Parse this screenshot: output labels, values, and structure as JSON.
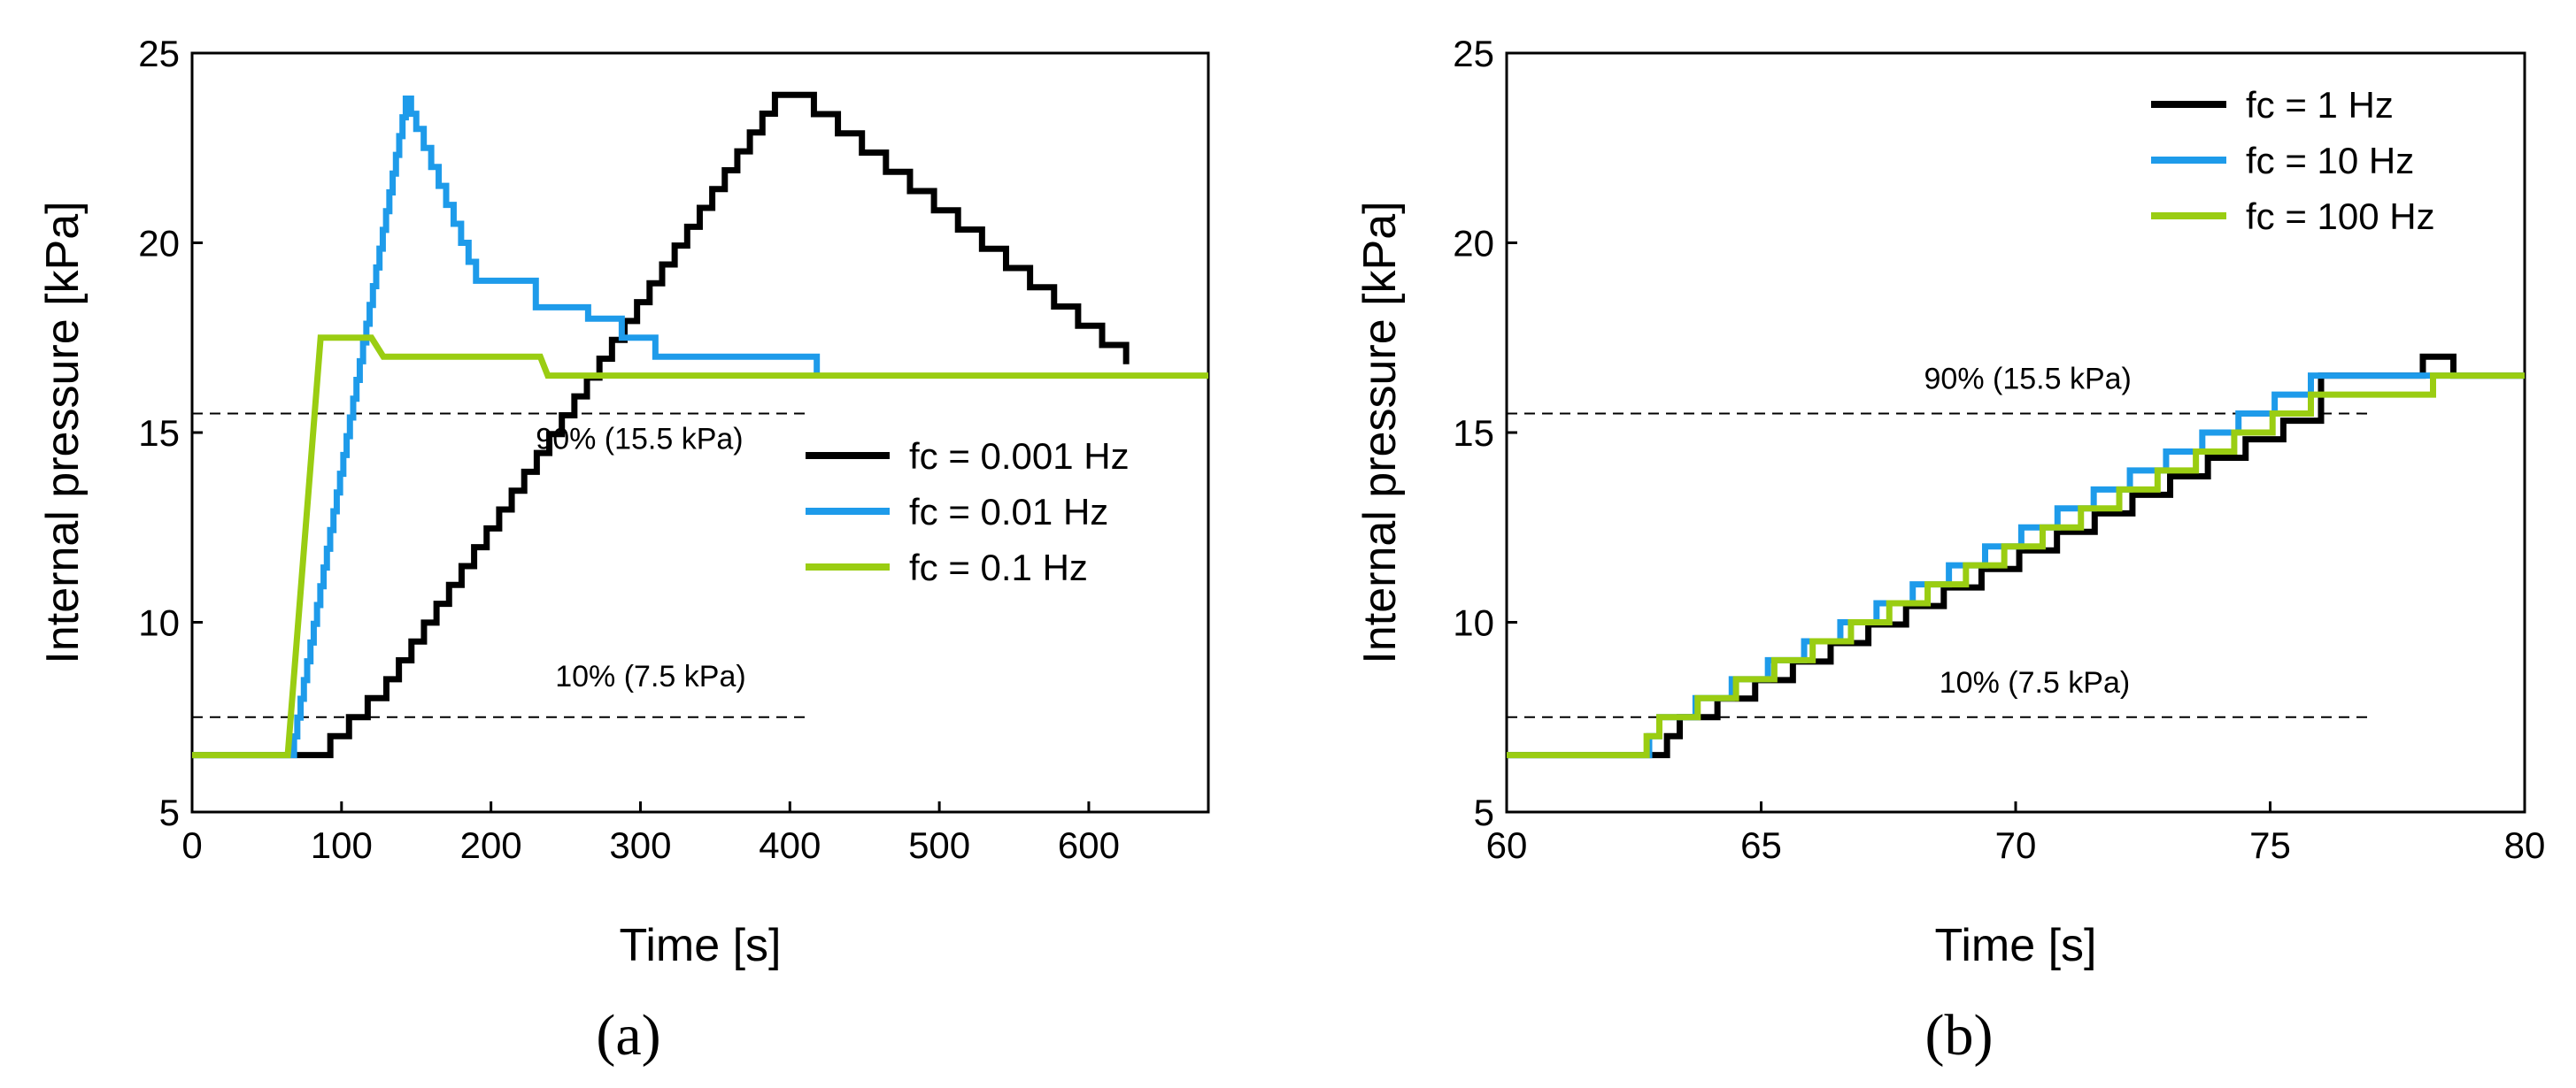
{
  "chart_data": [
    {
      "type": "line",
      "panel_label": "(a)",
      "xlabel": "Time [s]",
      "ylabel": "Internal pressure [kPa]",
      "xlim": [
        0,
        680
      ],
      "ylim": [
        5,
        25
      ],
      "xticks": [
        0,
        100,
        200,
        300,
        400,
        500,
        600
      ],
      "yticks": [
        5,
        10,
        15,
        20,
        25
      ],
      "grid": false,
      "legend_position": "middle-right",
      "reference_lines": [
        {
          "y": 15.5,
          "x_range": [
            0,
            410
          ],
          "label": "90% (15.5 kPa)",
          "label_x": 230
        },
        {
          "y": 7.5,
          "x_range": [
            0,
            410
          ],
          "label": "10% (7.5 kPa)",
          "label_x": 243
        }
      ],
      "series": [
        {
          "name": "fc = 0.001 Hz",
          "color": "#000000",
          "stepped": true,
          "points": [
            [
              0,
              6.5
            ],
            [
              66,
              6.5
            ],
            [
              80,
              6.5
            ],
            [
              130,
              8.5
            ],
            [
              390,
              23.9
            ],
            [
              400,
              23.9
            ],
            [
              625,
              16.8
            ]
          ]
        },
        {
          "name": "fc = 0.01 Hz",
          "color": "#1e9bea",
          "stepped": true,
          "points": [
            [
              0,
              6.5
            ],
            [
              66,
              6.5
            ],
            [
              143,
              23.8
            ],
            [
              150,
              23.0
            ],
            [
              190,
              19.0
            ],
            [
              230,
              18.3
            ],
            [
              265,
              18.0
            ],
            [
              310,
              17.0
            ],
            [
              418,
              17.0
            ],
            [
              418,
              16.5
            ]
          ]
        },
        {
          "name": "fc = 0.1 Hz",
          "color": "#9acd12",
          "stepped": false,
          "points": [
            [
              0,
              6.5
            ],
            [
              64,
              6.5
            ],
            [
              86,
              17.5
            ],
            [
              120,
              17.5
            ],
            [
              128,
              17.0
            ],
            [
              233,
              17.0
            ],
            [
              238,
              16.5
            ],
            [
              680,
              16.5
            ]
          ]
        }
      ]
    },
    {
      "type": "line",
      "panel_label": "(b)",
      "xlabel": "Time [s]",
      "ylabel": "Internal pressure [kPa]",
      "xlim": [
        60,
        80
      ],
      "ylim": [
        5,
        25
      ],
      "xticks": [
        60,
        65,
        70,
        75,
        80
      ],
      "yticks": [
        5,
        10,
        15,
        20,
        25
      ],
      "grid": false,
      "legend_position": "top-right",
      "reference_lines": [
        {
          "y": 15.5,
          "x_range": [
            60,
            77
          ],
          "label": "90% (15.5 kPa)",
          "label_x": 68.2
        },
        {
          "y": 7.5,
          "x_range": [
            60,
            77
          ],
          "label": "10% (7.5 kPa)",
          "label_x": 68.5
        }
      ],
      "series": [
        {
          "name": "fc = 1 Hz",
          "color": "#000000",
          "stepped": true,
          "points": [
            [
              60,
              6.5
            ],
            [
              62.9,
              6.5
            ],
            [
              63.4,
              7.5
            ],
            [
              76,
              15.8
            ],
            [
              76,
              16.5
            ],
            [
              78,
              16.5
            ],
            [
              78,
              17.0
            ],
            [
              78.6,
              17.0
            ],
            [
              78.6,
              16.5
            ],
            [
              80,
              16.5
            ]
          ]
        },
        {
          "name": "fc = 10 Hz",
          "color": "#1e9bea",
          "stepped": true,
          "points": [
            [
              60,
              6.5
            ],
            [
              62.6,
              6.5
            ],
            [
              63,
              7.5
            ],
            [
              75.8,
              16.5
            ],
            [
              80,
              16.5
            ]
          ]
        },
        {
          "name": "fc = 100 Hz",
          "color": "#9acd12",
          "stepped": true,
          "points": [
            [
              60,
              6.5
            ],
            [
              62.5,
              6.5
            ],
            [
              63,
              7.5
            ],
            [
              75.8,
              16.0
            ],
            [
              78.2,
              16.0
            ],
            [
              78.2,
              16.5
            ],
            [
              80,
              16.5
            ]
          ]
        }
      ]
    }
  ]
}
